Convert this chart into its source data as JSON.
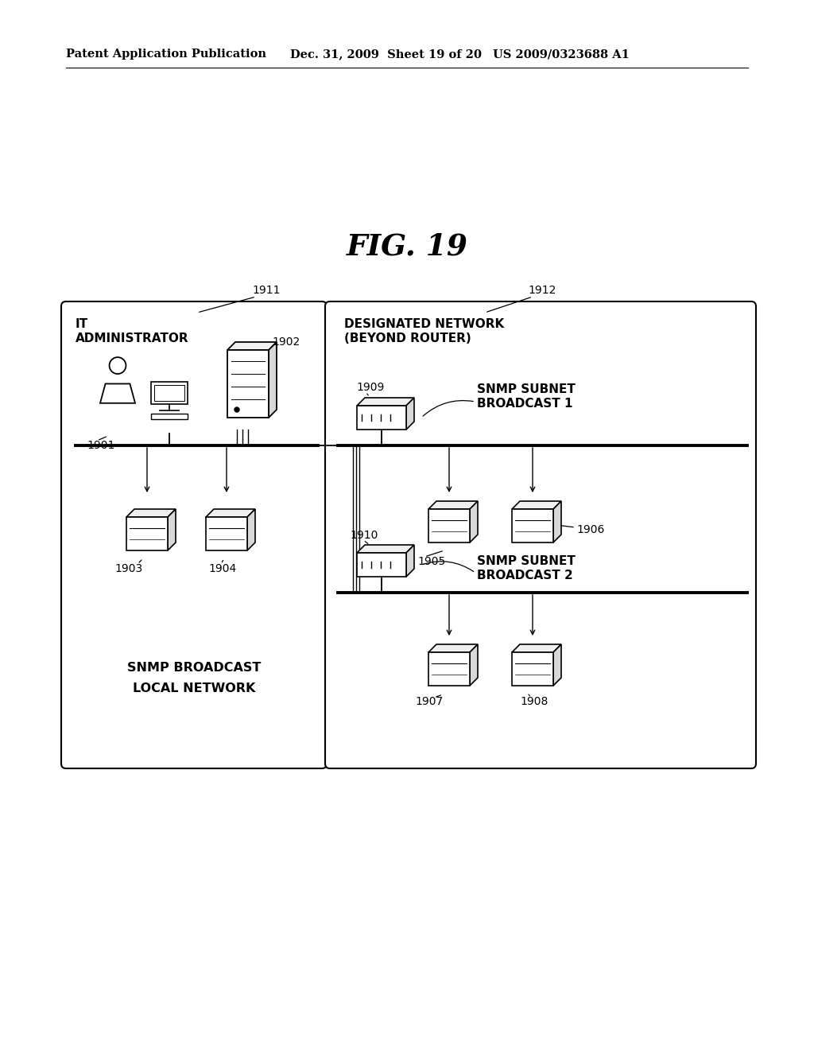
{
  "title": "FIG. 19",
  "header_left": "Patent Application Publication",
  "header_mid": "Dec. 31, 2009  Sheet 19 of 20",
  "header_right": "US 2009/0323688 A1",
  "bg_color": "#ffffff",
  "box1_label_top1": "IT",
  "box1_label_top2": "ADMINISTRATOR",
  "box1_label_bot1": "SNMP BROADCAST",
  "box1_label_bot2": "LOCAL NETWORK",
  "box2_label_top1": "DESIGNATED NETWORK",
  "box2_label_top2": "(BEYOND ROUTER)",
  "box2_label_mid1": "SNMP SUBNET",
  "box2_label_mid2": "BROADCAST 1",
  "box2_label_bot1": "SNMP SUBNET",
  "box2_label_bot2": "BROADCAST 2",
  "label_1911": "1911",
  "label_1912": "1912",
  "label_1901": "1901",
  "label_1902": "1902",
  "label_1903": "1903",
  "label_1904": "1904",
  "label_1905": "1905",
  "label_1906": "1906",
  "label_1907": "1907",
  "label_1908": "1908",
  "label_1909": "1909",
  "label_1910": "1910"
}
